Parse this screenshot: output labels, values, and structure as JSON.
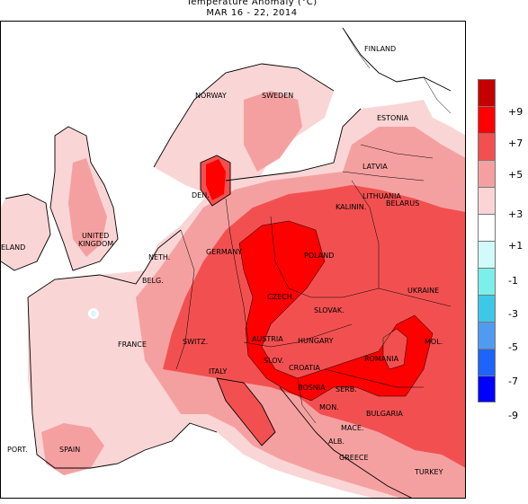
{
  "title": "Temperature Anomaly (°C)",
  "subtitle": "MAR 16 - 22, 2014",
  "colors": {
    "plus9": "#c40000",
    "plus7": "#ff0000",
    "plus5": "#f25050",
    "plus3": "#f5a0a0",
    "plus1": "#fad5d5",
    "neutral": "#ffffff",
    "minus1": "#d2fafa",
    "minus3": "#7af0e8",
    "minus5": "#3cc8e6",
    "minus7": "#509bf0",
    "minus9": "#1e64fa",
    "minus11": "#0000ff"
  },
  "legend": {
    "ticks": [
      "+9",
      "+7",
      "+5",
      "+3",
      "+1",
      "-1",
      "-3",
      "-5",
      "-7",
      "-9"
    ]
  },
  "labels": {
    "finland": "FINLAND",
    "norway": "NORWAY",
    "sweden": "SWEDEN",
    "estonia": "ESTONIA",
    "latvia": "LATVIA",
    "lithuania": "LITHUANIA",
    "kalinin": "KALININ.",
    "den": "DEN.",
    "belarus": "BELARUS",
    "ireland": "ELAND",
    "uk": [
      "UNITED",
      "KINGDOM"
    ],
    "neth": "NETH.",
    "germany": "GERMANY",
    "poland": "POLAND",
    "belg": "BELG.",
    "czech": "CZECH.",
    "slovak": "SLOVAK.",
    "ukraine": "UKRAINE",
    "france": "FRANCE",
    "switz": "SWITZ.",
    "austria": "AUSTRIA",
    "hungary": "HUNGARY",
    "romania": "ROMANIA",
    "mol": "MOL.",
    "slov": "SLOV.",
    "croatia": "CROATIA",
    "italy": "ITALY",
    "bosnia": "BOSNIA",
    "serb": "SERB.",
    "mon": "MON.",
    "bulgaria": "BULGARIA",
    "mace": "MACE.",
    "alb": "ALB.",
    "greece": "GREECE",
    "turkey": "TURKEY",
    "port": "PORT.",
    "spain": "SPAIN"
  }
}
